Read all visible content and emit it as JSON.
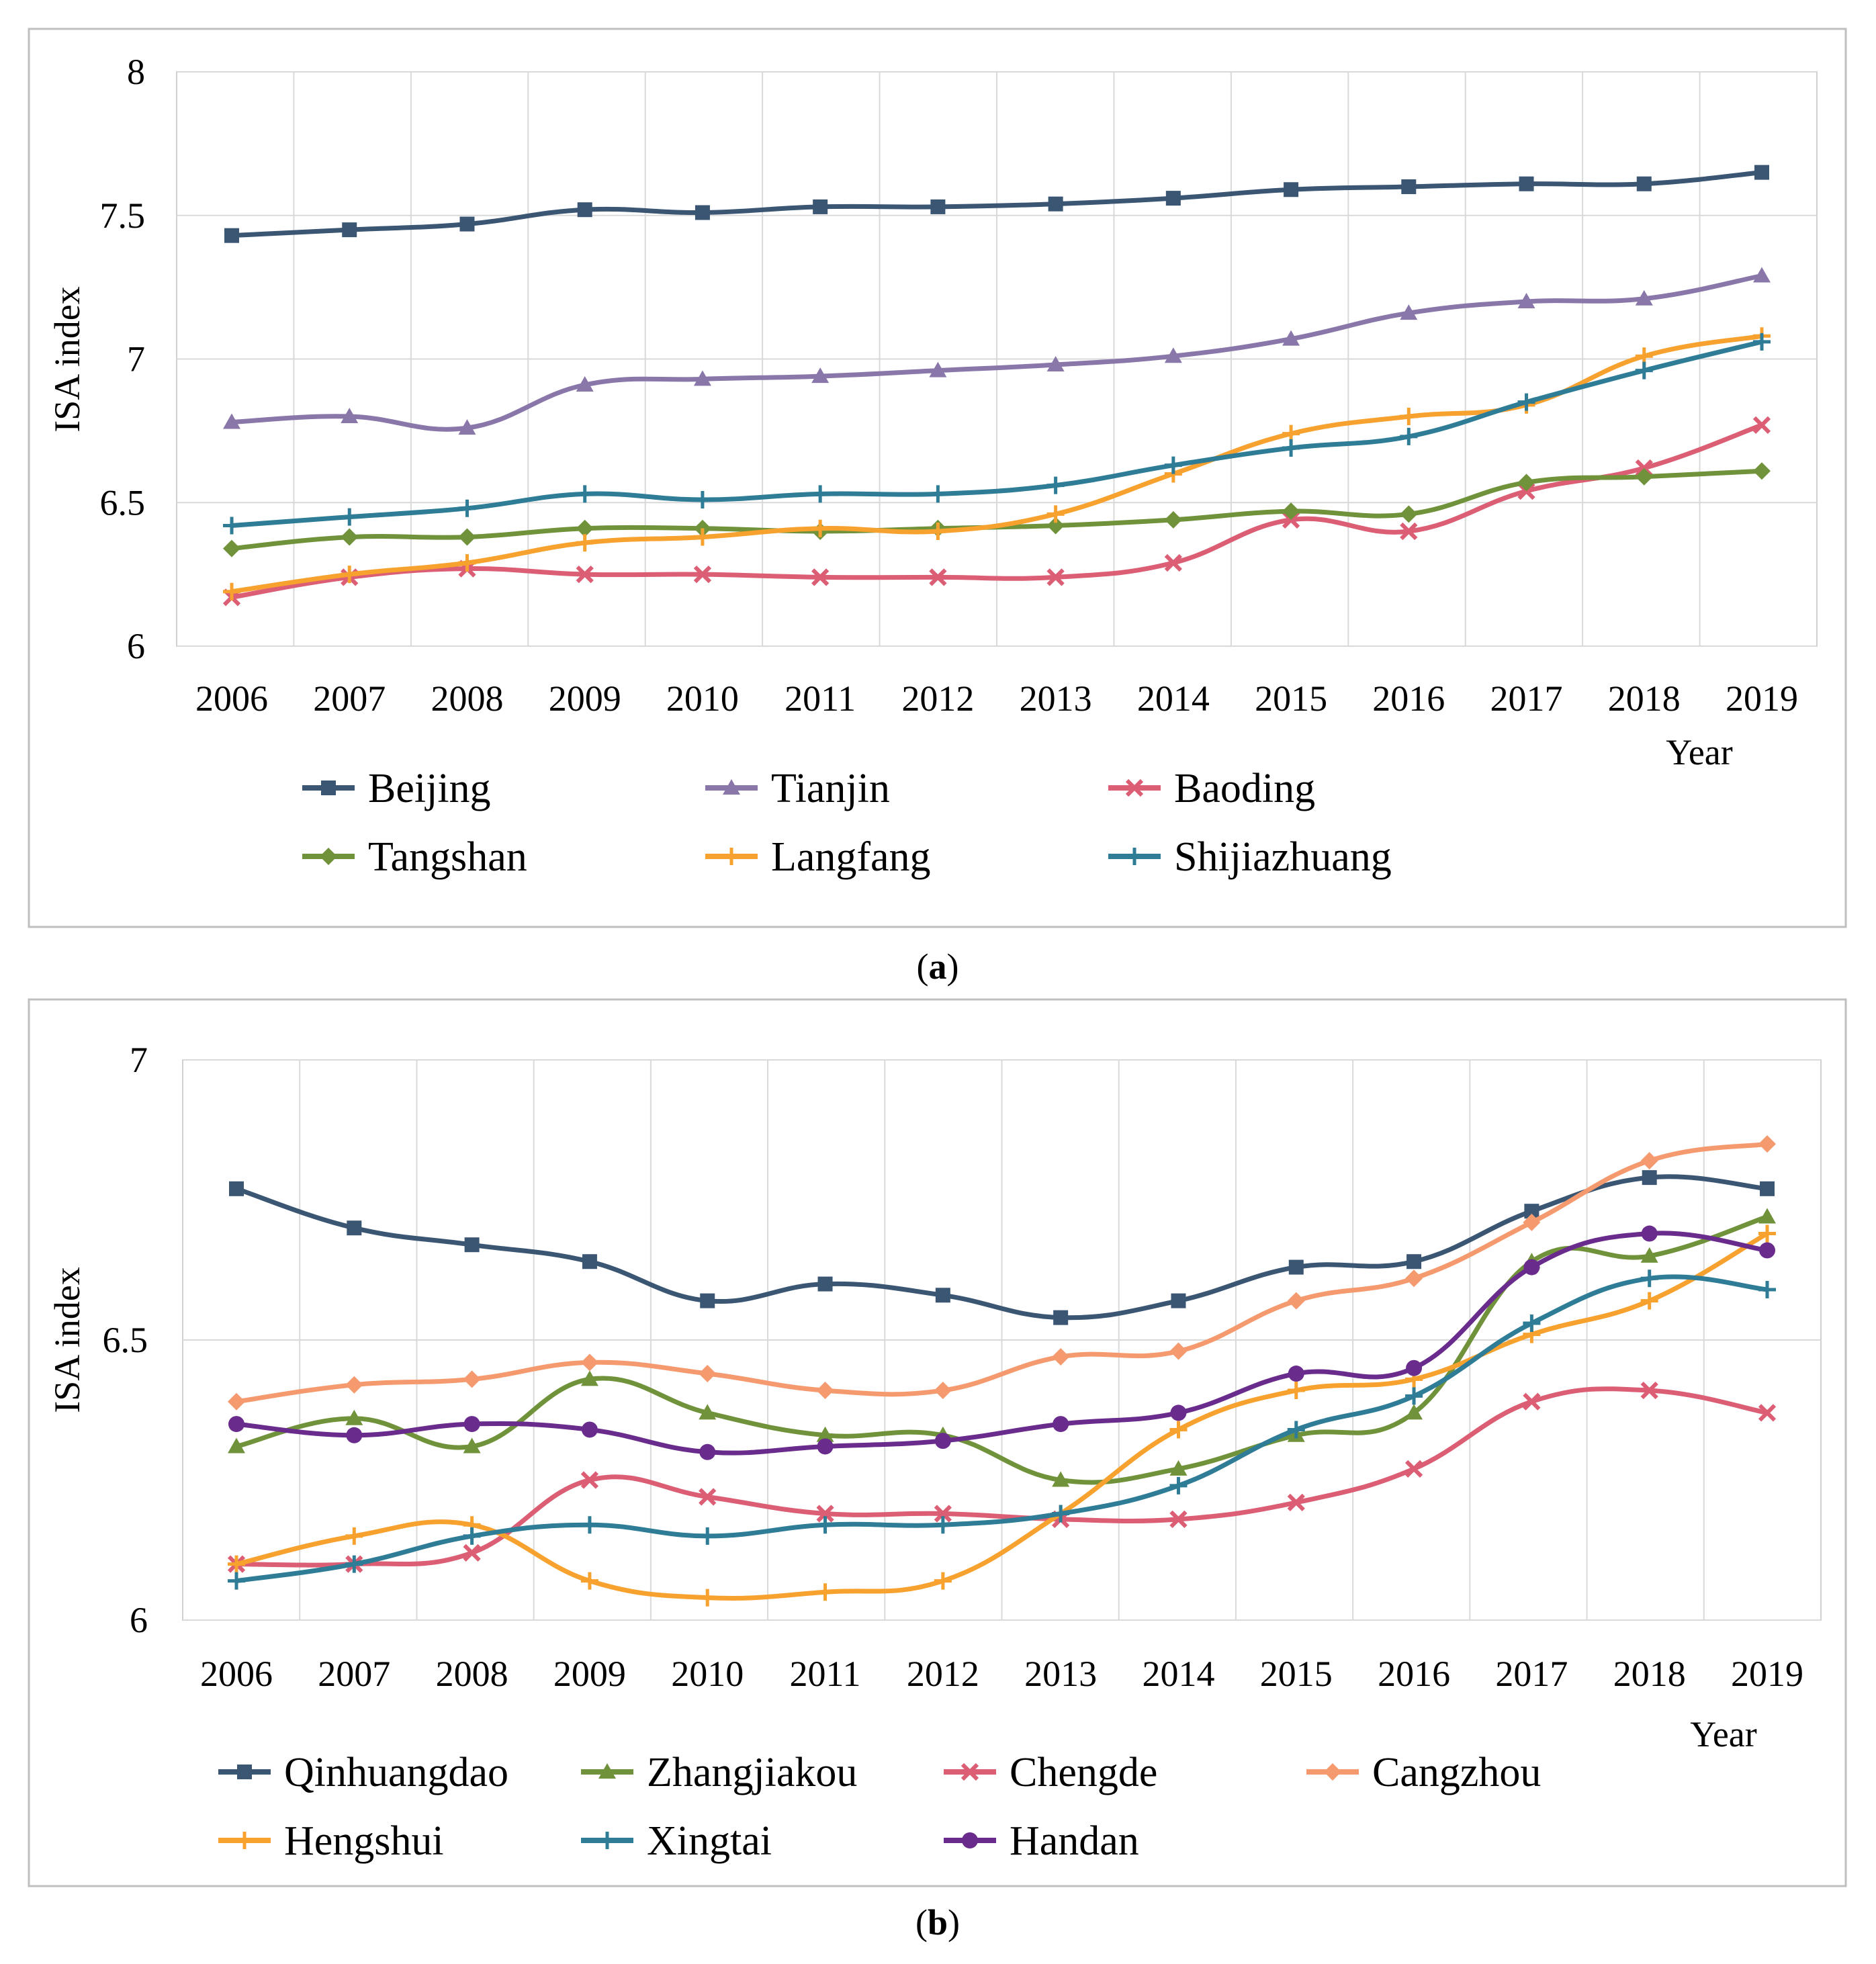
{
  "chart_data": [
    {
      "type": "line",
      "caption": "(a)",
      "caption_letter": "a",
      "ylabel": "ISA index",
      "xlabel": "Year",
      "ylim": [
        6,
        8
      ],
      "yticks": [
        "6",
        "6.5",
        "7",
        "7.5",
        "8"
      ],
      "grid": true,
      "categories": [
        "2006",
        "2007",
        "2008",
        "2009",
        "2010",
        "2011",
        "2012",
        "2013",
        "2014",
        "2015",
        "2016",
        "2017",
        "2018",
        "2019"
      ],
      "series": [
        {
          "name": "Beijing",
          "color": "#3A5673",
          "marker": "square",
          "values": [
            7.43,
            7.45,
            7.47,
            7.52,
            7.51,
            7.53,
            7.53,
            7.54,
            7.56,
            7.59,
            7.6,
            7.61,
            7.61,
            7.65
          ]
        },
        {
          "name": "Tianjin",
          "color": "#8A77A9",
          "marker": "triangle",
          "values": [
            6.78,
            6.8,
            6.76,
            6.91,
            6.93,
            6.94,
            6.96,
            6.98,
            7.01,
            7.07,
            7.16,
            7.2,
            7.21,
            7.29
          ]
        },
        {
          "name": "Baoding",
          "color": "#DB5E74",
          "marker": "x",
          "values": [
            6.17,
            6.24,
            6.27,
            6.25,
            6.25,
            6.24,
            6.24,
            6.24,
            6.29,
            6.44,
            6.4,
            6.54,
            6.62,
            6.77
          ]
        },
        {
          "name": "Tangshan",
          "color": "#70923A",
          "marker": "diamond",
          "values": [
            6.34,
            6.38,
            6.38,
            6.41,
            6.41,
            6.4,
            6.41,
            6.42,
            6.44,
            6.47,
            6.46,
            6.57,
            6.59,
            6.61
          ]
        },
        {
          "name": "Langfang",
          "color": "#F7A12F",
          "marker": "plus",
          "values": [
            6.19,
            6.25,
            6.29,
            6.36,
            6.38,
            6.41,
            6.4,
            6.46,
            6.6,
            6.74,
            6.8,
            6.84,
            7.01,
            7.08
          ]
        },
        {
          "name": "Shijiazhuang",
          "color": "#2E7C96",
          "marker": "plus",
          "values": [
            6.42,
            6.45,
            6.48,
            6.53,
            6.51,
            6.53,
            6.53,
            6.56,
            6.63,
            6.69,
            6.73,
            6.85,
            6.96,
            7.06
          ]
        }
      ]
    },
    {
      "type": "line",
      "caption": "(b)",
      "caption_letter": "b",
      "ylabel": "ISA index",
      "xlabel": "Year",
      "ylim": [
        6,
        7
      ],
      "yticks": [
        "6",
        "6.5",
        "7"
      ],
      "grid": true,
      "categories": [
        "2006",
        "2007",
        "2008",
        "2009",
        "2010",
        "2011",
        "2012",
        "2013",
        "2014",
        "2015",
        "2016",
        "2017",
        "2018",
        "2019"
      ],
      "series": [
        {
          "name": "Qinhuangdao",
          "color": "#3A5673",
          "marker": "square",
          "values": [
            6.77,
            6.7,
            6.67,
            6.64,
            6.57,
            6.6,
            6.58,
            6.54,
            6.57,
            6.63,
            6.64,
            6.73,
            6.79,
            6.77
          ]
        },
        {
          "name": "Zhangjiakou",
          "color": "#70923A",
          "marker": "triangle",
          "values": [
            6.31,
            6.36,
            6.31,
            6.43,
            6.37,
            6.33,
            6.33,
            6.25,
            6.27,
            6.33,
            6.37,
            6.64,
            6.65,
            6.72
          ]
        },
        {
          "name": "Chengde",
          "color": "#DB5E74",
          "marker": "x",
          "values": [
            6.1,
            6.1,
            6.12,
            6.25,
            6.22,
            6.19,
            6.19,
            6.18,
            6.18,
            6.21,
            6.27,
            6.39,
            6.41,
            6.37
          ]
        },
        {
          "name": "Cangzhou",
          "color": "#F59A6F",
          "marker": "diamond",
          "values": [
            6.39,
            6.42,
            6.43,
            6.46,
            6.44,
            6.41,
            6.41,
            6.47,
            6.48,
            6.57,
            6.61,
            6.71,
            6.82,
            6.85
          ]
        },
        {
          "name": "Hengshui",
          "color": "#F7A12F",
          "marker": "plus",
          "values": [
            6.1,
            6.15,
            6.17,
            6.07,
            6.04,
            6.05,
            6.07,
            6.19,
            6.34,
            6.41,
            6.43,
            6.51,
            6.57,
            6.69
          ]
        },
        {
          "name": "Xingtai",
          "color": "#2E7C96",
          "marker": "plus",
          "values": [
            6.07,
            6.1,
            6.15,
            6.17,
            6.15,
            6.17,
            6.17,
            6.19,
            6.24,
            6.34,
            6.4,
            6.53,
            6.61,
            6.59
          ]
        },
        {
          "name": "Handan",
          "color": "#6A2C8C",
          "marker": "circle",
          "values": [
            6.35,
            6.33,
            6.35,
            6.34,
            6.3,
            6.31,
            6.32,
            6.35,
            6.37,
            6.44,
            6.45,
            6.63,
            6.69,
            6.66
          ]
        }
      ]
    }
  ]
}
